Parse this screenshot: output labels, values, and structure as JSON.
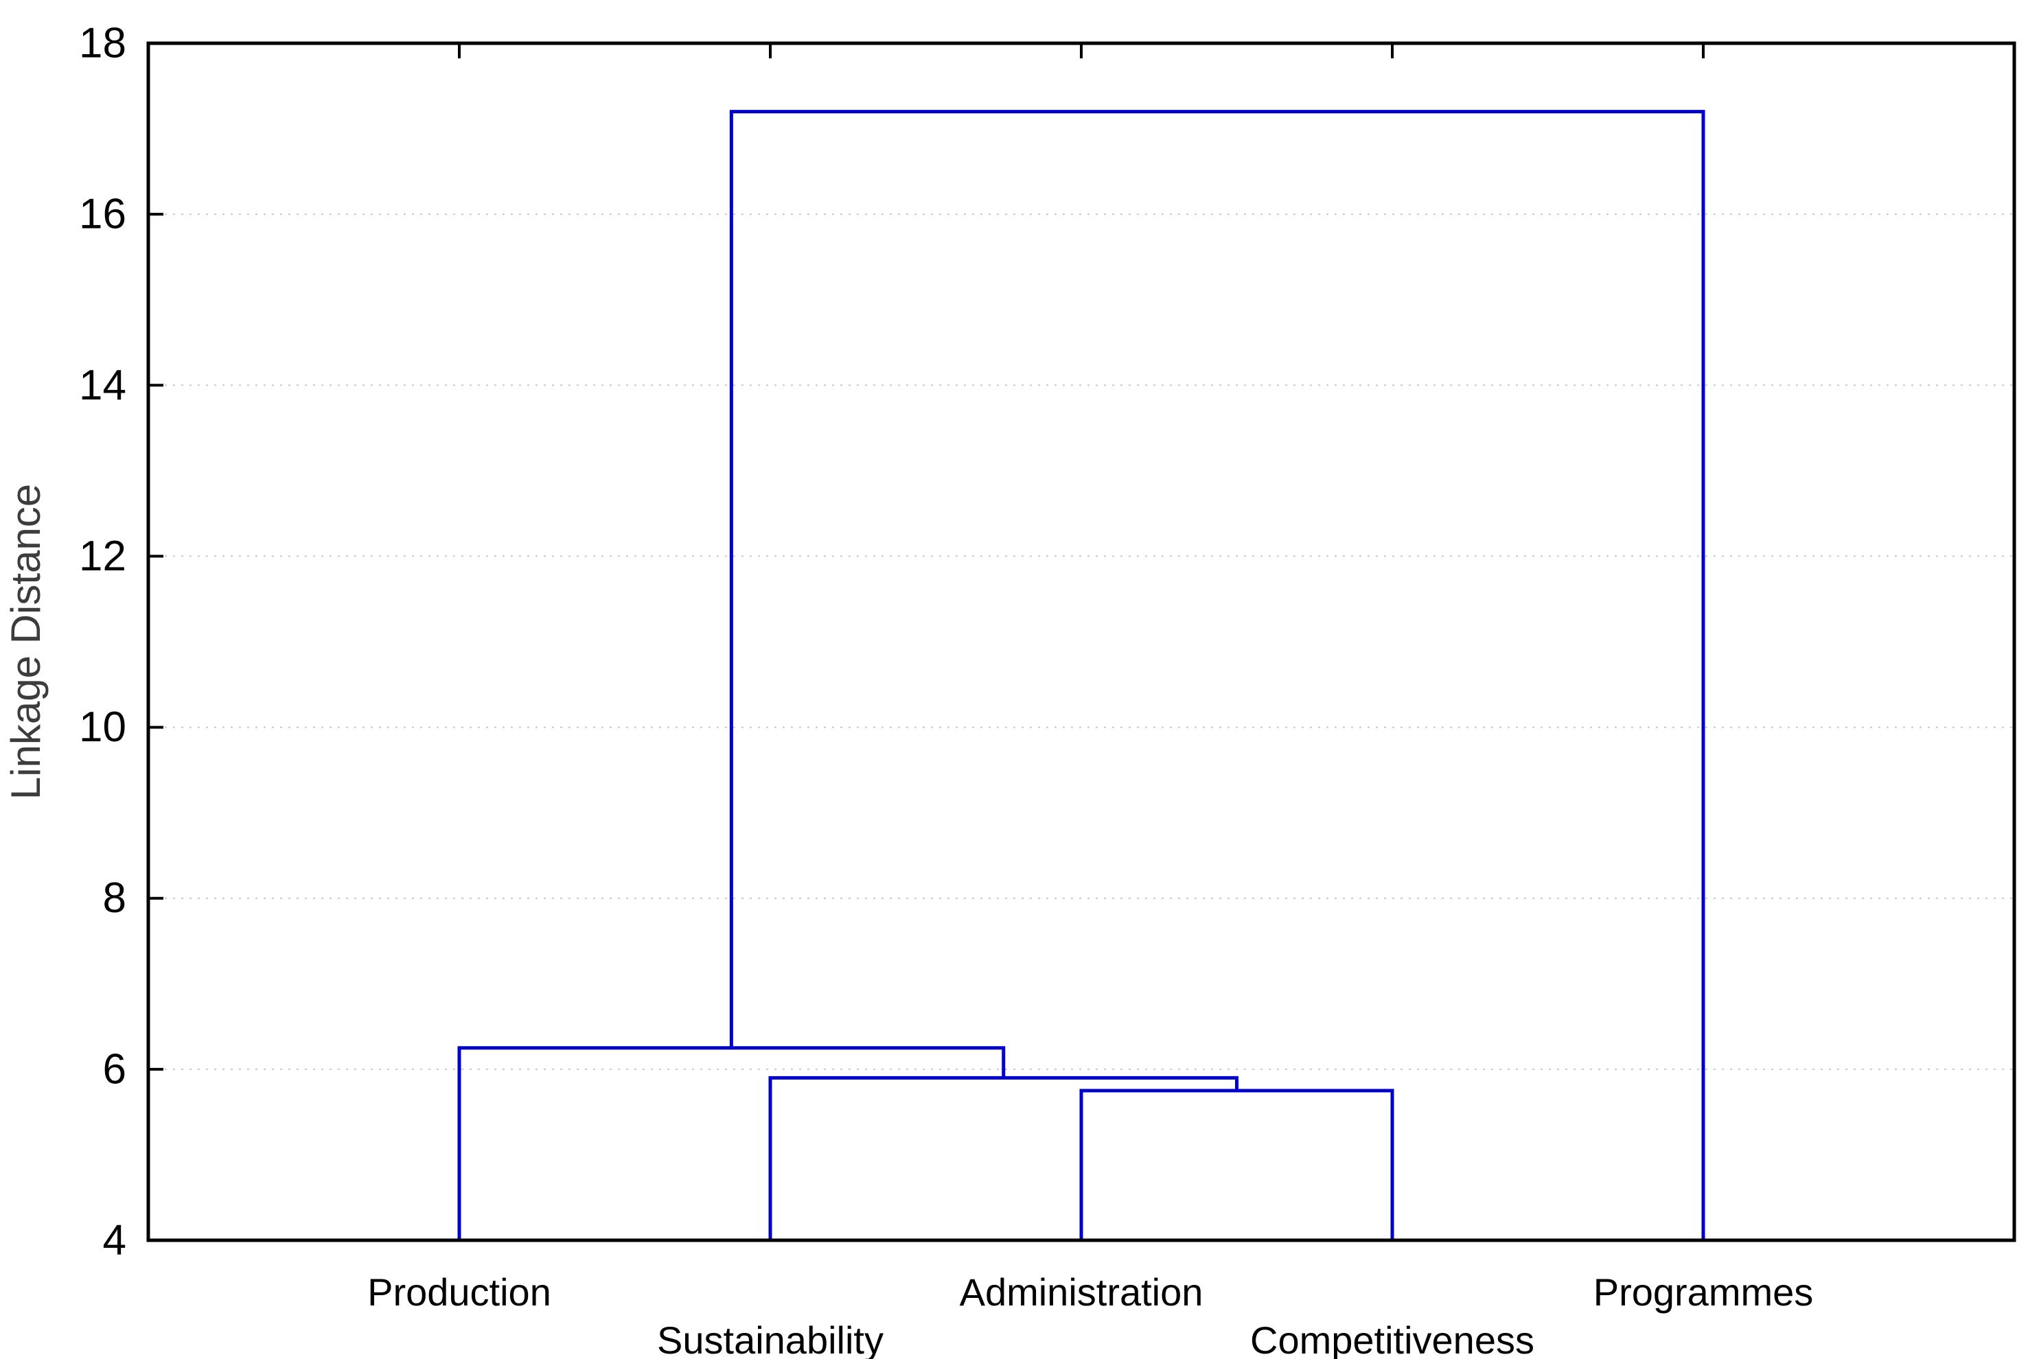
{
  "chart_data": {
    "type": "dendrogram",
    "title": "",
    "ylabel": "Linkage Distance",
    "ylim": [
      4,
      18
    ],
    "yticks": [
      4,
      6,
      8,
      10,
      12,
      14,
      16,
      18
    ],
    "grid": true,
    "legend": false,
    "line_color": "#0000cd",
    "frame_color": "#000000",
    "grid_color": "#c9c9c9",
    "leaves": [
      "Production",
      "Sustainability",
      "Administration",
      "Competitiveness",
      "Programmes"
    ],
    "merges": [
      {
        "children": [
          2,
          3
        ],
        "height": 5.75
      },
      {
        "children": [
          1,
          5
        ],
        "height": 5.9
      },
      {
        "children": [
          0,
          6
        ],
        "height": 6.25
      },
      {
        "children": [
          7,
          4
        ],
        "height": 17.2
      }
    ]
  }
}
